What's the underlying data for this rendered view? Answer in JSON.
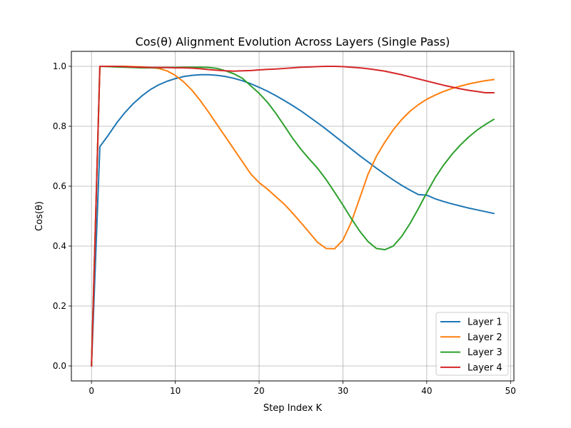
{
  "chart_data": {
    "type": "line",
    "title": "Cos(θ) Alignment Evolution Across Layers (Single Pass)",
    "xlabel": "Step Index K",
    "ylabel": "Cos(θ)",
    "xlim": [
      -2.4,
      50.4
    ],
    "ylim": [
      -0.05,
      1.05
    ],
    "xticks": [
      0,
      10,
      20,
      30,
      40,
      50
    ],
    "yticks": [
      0.0,
      0.2,
      0.4,
      0.6,
      0.8,
      1.0
    ],
    "xtick_labels": [
      "0",
      "10",
      "20",
      "30",
      "40",
      "50"
    ],
    "ytick_labels": [
      "0.0",
      "0.2",
      "0.4",
      "0.6",
      "0.8",
      "1.0"
    ],
    "grid": true,
    "legend_position": "lower-right",
    "x": [
      0,
      1,
      2,
      3,
      4,
      5,
      6,
      7,
      8,
      9,
      10,
      11,
      12,
      13,
      14,
      15,
      16,
      17,
      18,
      19,
      20,
      21,
      22,
      23,
      24,
      25,
      26,
      27,
      28,
      29,
      30,
      31,
      32,
      33,
      34,
      35,
      36,
      37,
      38,
      39,
      40,
      41,
      42,
      43,
      44,
      45,
      46,
      47,
      48
    ],
    "series": [
      {
        "name": "Layer 1",
        "color": "#1f77b4",
        "values": [
          0.0,
          0.732,
          0.77,
          0.811,
          0.846,
          0.876,
          0.901,
          0.922,
          0.938,
          0.95,
          0.959,
          0.966,
          0.97,
          0.972,
          0.972,
          0.97,
          0.966,
          0.96,
          0.952,
          0.942,
          0.93,
          0.917,
          0.902,
          0.886,
          0.869,
          0.851,
          0.831,
          0.811,
          0.79,
          0.768,
          0.746,
          0.724,
          0.702,
          0.681,
          0.66,
          0.64,
          0.621,
          0.603,
          0.587,
          0.572,
          0.57,
          0.558,
          0.549,
          0.541,
          0.534,
          0.527,
          0.521,
          0.515,
          0.509
        ]
      },
      {
        "name": "Layer 2",
        "color": "#ff7f0e",
        "values": [
          0.0,
          1.0,
          1.0,
          1.0,
          1.0,
          0.999,
          0.998,
          0.996,
          0.993,
          0.985,
          0.97,
          0.948,
          0.92,
          0.885,
          0.846,
          0.805,
          0.764,
          0.723,
          0.682,
          0.641,
          0.612,
          0.59,
          0.565,
          0.54,
          0.51,
          0.478,
          0.445,
          0.412,
          0.392,
          0.391,
          0.42,
          0.48,
          0.56,
          0.64,
          0.7,
          0.747,
          0.788,
          0.822,
          0.85,
          0.872,
          0.89,
          0.904,
          0.916,
          0.926,
          0.934,
          0.941,
          0.947,
          0.952,
          0.956
        ]
      },
      {
        "name": "Layer 3",
        "color": "#2ca02c",
        "values": [
          0.0,
          1.0,
          0.999,
          0.998,
          0.997,
          0.996,
          0.995,
          0.995,
          0.995,
          0.996,
          0.996,
          0.997,
          0.997,
          0.997,
          0.996,
          0.993,
          0.985,
          0.975,
          0.96,
          0.935,
          0.91,
          0.88,
          0.843,
          0.802,
          0.76,
          0.723,
          0.69,
          0.659,
          0.622,
          0.58,
          0.537,
          0.492,
          0.45,
          0.415,
          0.392,
          0.388,
          0.4,
          0.432,
          0.475,
          0.525,
          0.578,
          0.628,
          0.67,
          0.706,
          0.737,
          0.764,
          0.787,
          0.806,
          0.823
        ]
      },
      {
        "name": "Layer 4",
        "color": "#d62728",
        "values": [
          0.0,
          1.0,
          1.0,
          1.0,
          0.999,
          0.998,
          0.997,
          0.996,
          0.996,
          0.996,
          0.995,
          0.995,
          0.994,
          0.992,
          0.989,
          0.987,
          0.985,
          0.984,
          0.985,
          0.986,
          0.988,
          0.99,
          0.991,
          0.993,
          0.995,
          0.997,
          0.998,
          0.999,
          1.0,
          1.0,
          0.999,
          0.997,
          0.995,
          0.992,
          0.988,
          0.984,
          0.978,
          0.972,
          0.965,
          0.958,
          0.951,
          0.944,
          0.937,
          0.931,
          0.925,
          0.92,
          0.916,
          0.912,
          0.912
        ]
      }
    ]
  }
}
